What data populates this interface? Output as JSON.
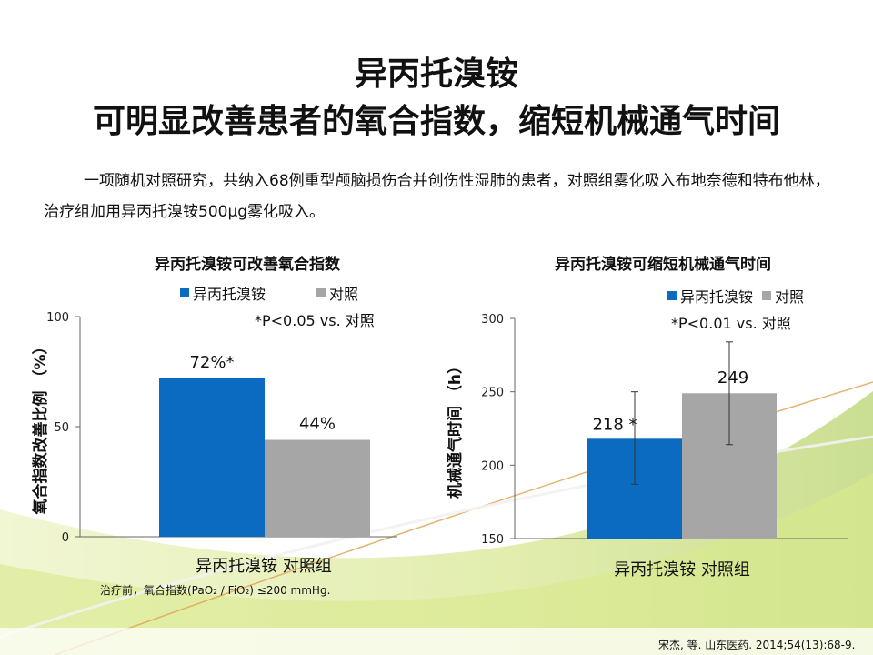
{
  "slide": {
    "title_line1": "异丙托溴铵",
    "title_line2": "可明显改善患者的氧合指数，缩短机械通气时间",
    "intro": "一项随机对照研究，共纳入68例重型颅脑损伤合并创伤性湿肺的患者，对照组雾化吸入布地奈德和特布他林，治疗组加用异丙托溴铵500μg雾化吸入。",
    "footnote": "治疗前，氧合指数(PaO₂ / FiO₂) ≤200 mmHg.",
    "citation": "宋杰, 等. 山东医药. 2014;54(13):68-9."
  },
  "colors": {
    "treatment": "#0a6bc0",
    "control": "#a6a6a6"
  },
  "chart_data": [
    {
      "type": "bar",
      "title": "异丙托溴铵可改善氧合指数",
      "ylabel": "氧合指数改善比例 （%）",
      "xlabel": "异丙托溴铵 对照组",
      "categories": [
        "异丙托溴铵",
        "对照"
      ],
      "series_names": [
        "异丙托溴铵",
        "对照"
      ],
      "values": [
        72,
        44
      ],
      "value_labels": [
        "72%*",
        "44%"
      ],
      "ylim": [
        0,
        100
      ],
      "yticks": [
        0,
        50,
        100
      ],
      "ytick_labels": [
        "0",
        "50",
        "100"
      ],
      "annotation": "*P<0.05 vs. 对照",
      "legend_position": "top"
    },
    {
      "type": "bar",
      "title": "异丙托溴铵可缩短机械通气时间",
      "ylabel": "机械通气时间 （h）",
      "xlabel": "异丙托溴铵 对照组",
      "categories": [
        "异丙托溴铵",
        "对照"
      ],
      "series_names": [
        "异丙托溴铵",
        "对照"
      ],
      "values": [
        218,
        249
      ],
      "value_labels": [
        "218 *",
        "249"
      ],
      "error_low": [
        187,
        214
      ],
      "error_high": [
        250,
        284
      ],
      "ylim": [
        150,
        300
      ],
      "yticks": [
        150,
        200,
        250,
        300
      ],
      "ytick_labels": [
        "150",
        "200",
        "250",
        "300"
      ],
      "annotation": "*P<0.01 vs. 对照",
      "legend_position": "top"
    }
  ]
}
